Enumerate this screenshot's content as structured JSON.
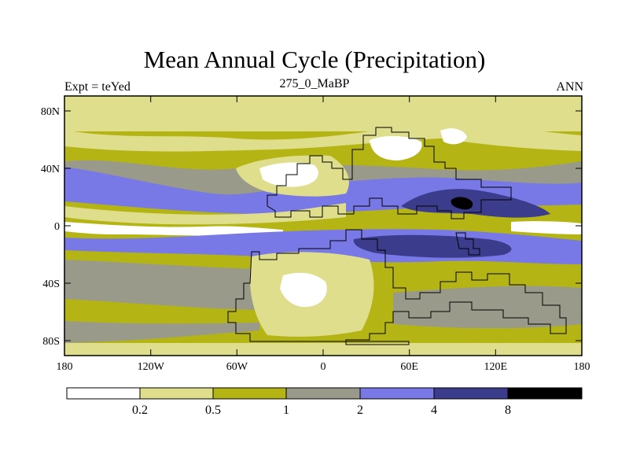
{
  "title": "Mean Annual Cycle (Precipitation)",
  "subtitle_left": "Expt = teYed",
  "subtitle_center": "275_0_MaBP",
  "subtitle_right": "ANN",
  "y_labels": [
    "80N",
    "40N",
    "0",
    "40S",
    "80S"
  ],
  "x_labels": [
    "180",
    "120W",
    "60W",
    "0",
    "60E",
    "120E",
    "180"
  ],
  "legend": {
    "colors": [
      "#ffffff",
      "#dede8c",
      "#b4b414",
      "#9a9a8a",
      "#7878e6",
      "#3c3c8c",
      "#000000"
    ],
    "labels": [
      "0.2",
      "0.5",
      "1",
      "2",
      "4",
      "8"
    ]
  },
  "colors": {
    "white": "#ffffff",
    "light": "#dede8c",
    "olive": "#b4b414",
    "gray": "#9a9a8a",
    "blue": "#7878e6",
    "dark": "#3c3c8c",
    "black": "#000000"
  }
}
